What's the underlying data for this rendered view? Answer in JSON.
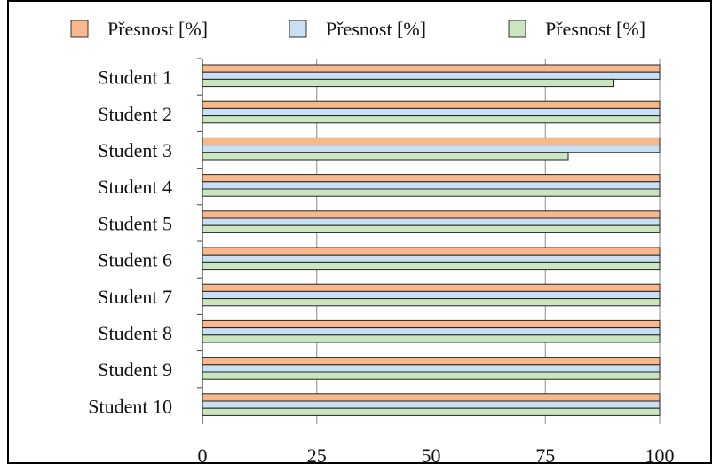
{
  "chart_data": {
    "type": "bar",
    "orientation": "horizontal",
    "categories": [
      "Student 1",
      "Student 2",
      "Student 3",
      "Student 4",
      "Student 5",
      "Student 6",
      "Student 7",
      "Student 8",
      "Student 9",
      "Student 10"
    ],
    "series": [
      {
        "name": "Přesnost [%]",
        "color": "#f8b88b",
        "values": [
          100,
          100,
          100,
          100,
          100,
          100,
          100,
          100,
          100,
          100
        ]
      },
      {
        "name": "Přesnost [%]",
        "color": "#c9dff3",
        "values": [
          100,
          100,
          100,
          100,
          100,
          100,
          100,
          100,
          100,
          100
        ]
      },
      {
        "name": "Přesnost [%]",
        "color": "#c9e6bf",
        "values": [
          90,
          100,
          80,
          100,
          100,
          100,
          100,
          100,
          100,
          100
        ]
      }
    ],
    "xlim": [
      0,
      100
    ],
    "xticks": [
      0,
      25,
      50,
      75,
      100
    ],
    "grid": "vertical",
    "legend_position": "top",
    "title": "",
    "xlabel": "",
    "ylabel": ""
  }
}
